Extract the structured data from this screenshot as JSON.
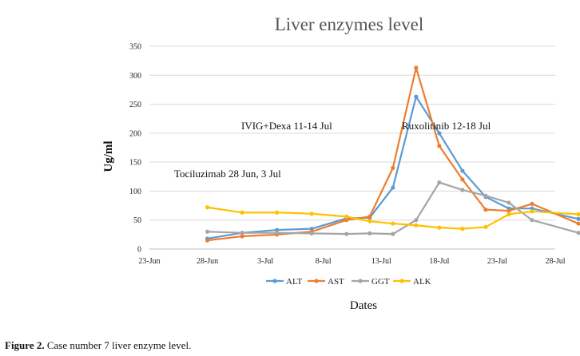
{
  "caption": {
    "label": "Figure 2.",
    "text": " Case number 7 liver enzyme level."
  },
  "chart_data": {
    "type": "line",
    "title": "Liver enzymes level",
    "xlabel": "Dates",
    "ylabel": "Ug/ml",
    "ylim": [
      0,
      350
    ],
    "yticks": [
      0,
      50,
      100,
      150,
      200,
      250,
      300,
      350
    ],
    "xticks": [
      "23-Jun",
      "28-Jun",
      "3-Jul",
      "8-Jul",
      "13-Jul",
      "18-Jul",
      "23-Jul",
      "28-Jul"
    ],
    "x": [
      "28-Jun",
      "1-Jul",
      "4-Jul",
      "7-Jul",
      "10-Jul",
      "13-Jul",
      "16-Jul",
      "19-Jul",
      "22-Jul",
      "25-Jul",
      "28-Jul",
      "31-Jul",
      "3-Aug",
      "6-Aug"
    ],
    "xdays": [
      28,
      31,
      34,
      37,
      40,
      42,
      44,
      46,
      48,
      50,
      52,
      54,
      56,
      60
    ],
    "series": [
      {
        "name": "ALT",
        "color": "#5b9bd5",
        "values": [
          18,
          28,
          33,
          35,
          53,
          54,
          106,
          263,
          200,
          135,
          90,
          70,
          70,
          52
        ]
      },
      {
        "name": "AST",
        "color": "#ed7d31",
        "values": [
          15,
          22,
          25,
          30,
          50,
          56,
          140,
          313,
          178,
          120,
          68,
          66,
          78,
          44
        ]
      },
      {
        "name": "GGT",
        "color": "#a5a5a5",
        "values": [
          30,
          28,
          28,
          27,
          26,
          27,
          26,
          50,
          115,
          102,
          92,
          80,
          50,
          28
        ]
      },
      {
        "name": "ALK",
        "color": "#ffc000",
        "values": [
          72,
          63,
          63,
          61,
          56,
          48,
          44,
          41,
          37,
          35,
          38,
          60,
          65,
          60
        ]
      }
    ],
    "annotations": [
      {
        "text": "IVIG+Dexa 11-14 Jul"
      },
      {
        "text": "Ruxolitinib 12-18 Jul"
      },
      {
        "text": "Tociluzimab 28 Jun, 3 Jul"
      }
    ],
    "grid": true,
    "legend": "bottom"
  }
}
